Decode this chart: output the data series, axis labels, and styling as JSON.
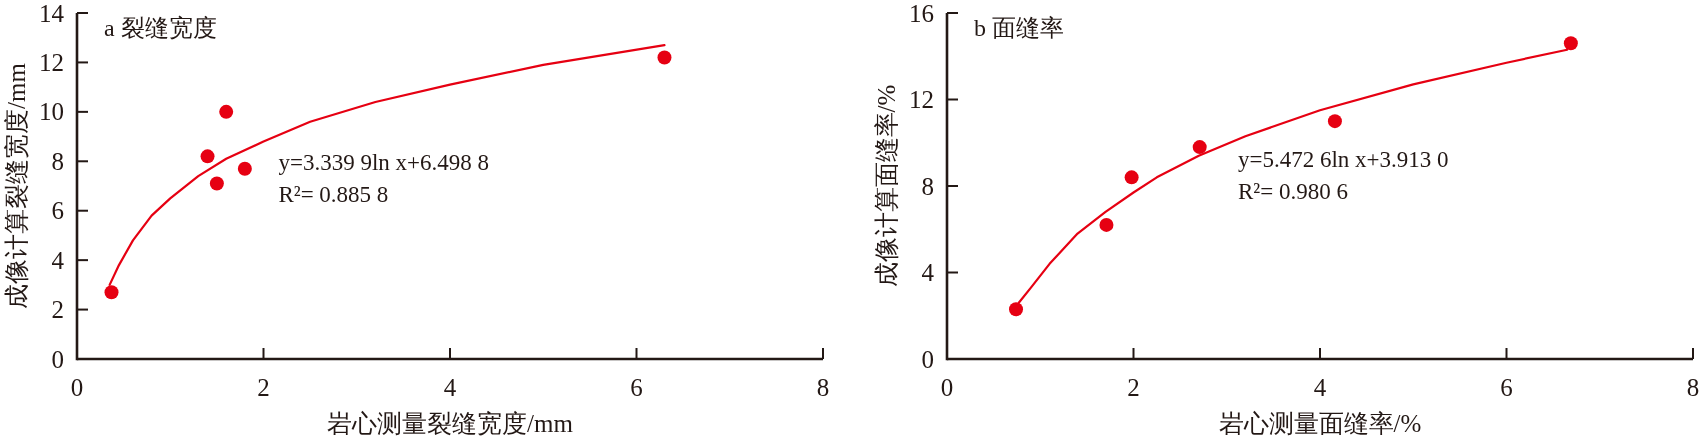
{
  "chart_data": [
    {
      "type": "scatter",
      "title": "a 裂缝宽度",
      "xlabel": "岩心测量裂缝宽度/mm",
      "ylabel": "成像计算裂缝宽度/mm",
      "xlim": [
        0,
        8
      ],
      "ylim": [
        0,
        14
      ],
      "xticks": [
        0,
        2,
        4,
        6,
        8
      ],
      "yticks": [
        0,
        2,
        4,
        6,
        8,
        10,
        12,
        14
      ],
      "series": [
        {
          "type": "scatter",
          "color": "#e60012",
          "marker": "circle",
          "x": [
            0.37,
            1.4,
            1.5,
            1.6,
            1.8,
            6.3
          ],
          "values": [
            2.7,
            8.2,
            7.1,
            10.0,
            7.7,
            12.2
          ]
        },
        {
          "type": "line",
          "color": "#e60012",
          "line_style": "solid",
          "x": [
            0.35,
            0.45,
            0.6,
            0.8,
            1.0,
            1.3,
            1.6,
            2.0,
            2.5,
            3.2,
            4.0,
            5.0,
            6.3
          ],
          "values": [
            3.0,
            3.8,
            4.8,
            5.8,
            6.5,
            7.4,
            8.1,
            8.8,
            9.6,
            10.4,
            11.1,
            11.9,
            12.7
          ]
        }
      ],
      "annotations": [
        "y=3.339 9ln x+6.498 8",
        "R²= 0.885 8"
      ]
    },
    {
      "type": "scatter",
      "title": "b 面缝率",
      "xlabel": "岩心测量面缝率/%",
      "ylabel": "成像计算面缝率/%",
      "xlim": [
        0,
        8
      ],
      "ylim": [
        0,
        16
      ],
      "xticks": [
        0,
        2,
        4,
        6,
        8
      ],
      "yticks": [
        0,
        4,
        8,
        12,
        16
      ],
      "series": [
        {
          "type": "scatter",
          "color": "#e60012",
          "marker": "circle",
          "x": [
            0.74,
            1.71,
            1.98,
            2.71,
            4.16,
            6.69
          ],
          "values": [
            2.3,
            6.2,
            8.4,
            9.8,
            11.0,
            14.6
          ]
        },
        {
          "type": "line",
          "color": "#e60012",
          "line_style": "solid",
          "x": [
            0.77,
            0.9,
            1.1,
            1.4,
            1.7,
            2.0,
            2.25,
            2.7,
            3.2,
            4.0,
            5.0,
            6.0,
            6.65
          ],
          "values": [
            2.6,
            3.3,
            4.4,
            5.8,
            6.8,
            7.7,
            8.4,
            9.4,
            10.3,
            11.5,
            12.7,
            13.7,
            14.3
          ]
        }
      ],
      "annotations": [
        "y=5.472 6ln x+3.913 0",
        "R²= 0.980 6"
      ]
    }
  ]
}
